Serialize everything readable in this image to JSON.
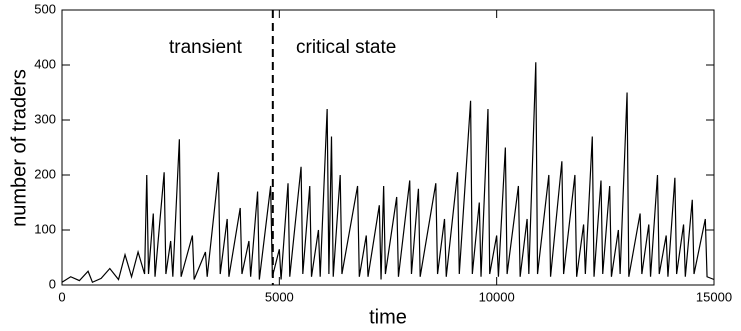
{
  "chart_data": {
    "type": "line",
    "xlabel": "time",
    "ylabel": "number of traders",
    "annotations": [
      "transient",
      "critical state"
    ],
    "transition_x": 4850,
    "color": "#000000",
    "xlim": [
      0,
      15000
    ],
    "xticks": [
      0,
      5000,
      10000,
      15000
    ],
    "ylim": [
      0,
      500
    ],
    "yticks": [
      0,
      100,
      200,
      300,
      400,
      500
    ],
    "x": [
      0,
      200,
      400,
      600,
      700,
      900,
      1100,
      1300,
      1450,
      1600,
      1750,
      1900,
      1950,
      1990,
      2100,
      2140,
      2350,
      2390,
      2500,
      2550,
      2700,
      2740,
      3000,
      3040,
      3300,
      3340,
      3600,
      3640,
      3800,
      3840,
      4100,
      4140,
      4300,
      4340,
      4500,
      4540,
      4800,
      4840,
      5000,
      5040,
      5200,
      5240,
      5500,
      5540,
      5700,
      5740,
      5900,
      5940,
      6100,
      6140,
      6200,
      6240,
      6400,
      6440,
      6800,
      6840,
      7000,
      7040,
      7300,
      7340,
      7400,
      7440,
      7700,
      7740,
      8000,
      8040,
      8200,
      8240,
      8600,
      8640,
      8800,
      8840,
      9100,
      9140,
      9400,
      9440,
      9600,
      9640,
      9800,
      9840,
      10000,
      10040,
      10200,
      10240,
      10500,
      10540,
      10700,
      10740,
      10900,
      10940,
      11200,
      11240,
      11500,
      11540,
      11800,
      11840,
      12000,
      12040,
      12200,
      12240,
      12400,
      12440,
      12600,
      12640,
      12800,
      12840,
      13000,
      13040,
      13300,
      13340,
      13500,
      13540,
      13700,
      13740,
      13900,
      13940,
      14100,
      14140,
      14300,
      14340,
      14500,
      14540,
      14800,
      14840,
      15000
    ],
    "values": [
      5,
      15,
      8,
      25,
      5,
      12,
      30,
      10,
      55,
      15,
      60,
      20,
      200,
      20,
      130,
      15,
      205,
      20,
      80,
      15,
      265,
      15,
      90,
      10,
      60,
      15,
      205,
      20,
      120,
      15,
      140,
      20,
      80,
      15,
      170,
      10,
      180,
      15,
      65,
      10,
      185,
      15,
      215,
      20,
      180,
      15,
      100,
      15,
      320,
      20,
      270,
      15,
      200,
      20,
      180,
      15,
      90,
      15,
      145,
      10,
      180,
      20,
      160,
      15,
      190,
      20,
      175,
      15,
      185,
      20,
      120,
      15,
      205,
      20,
      335,
      20,
      150,
      15,
      320,
      20,
      90,
      15,
      250,
      20,
      180,
      15,
      120,
      20,
      405,
      20,
      200,
      15,
      225,
      20,
      200,
      15,
      110,
      20,
      270,
      15,
      190,
      20,
      180,
      15,
      100,
      20,
      350,
      15,
      130,
      20,
      110,
      15,
      200,
      20,
      90,
      15,
      195,
      20,
      110,
      15,
      155,
      20,
      120,
      15,
      10
    ]
  }
}
